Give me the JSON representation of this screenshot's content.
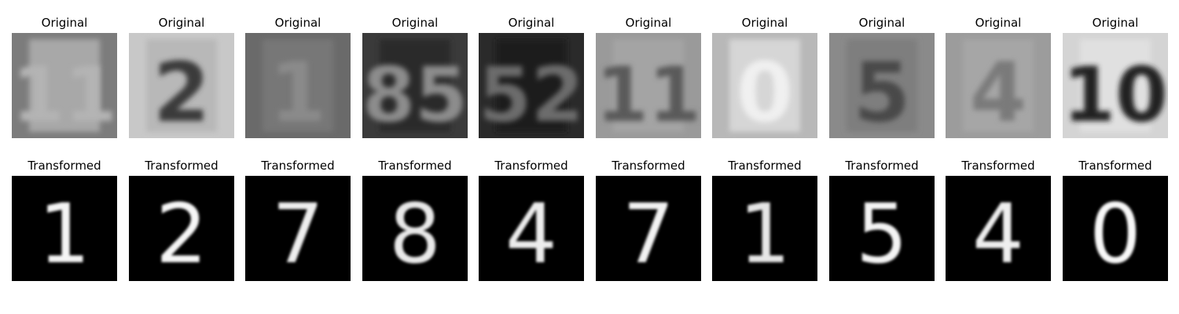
{
  "rows": [
    {
      "label": "Original",
      "images": [
        {
          "digit": "11",
          "bg": "#7c7c7c",
          "fg": "#a8a8a8",
          "digit_color": "#b4b4b4"
        },
        {
          "digit": "2",
          "bg": "#c8c8c8",
          "fg": "#b8b8b8",
          "digit_color": "#3a3a3a"
        },
        {
          "digit": "1",
          "bg": "#6a6a6a",
          "fg": "#777777",
          "digit_color": "#8a8a8a"
        },
        {
          "digit": "85",
          "bg": "#3a3a3a",
          "fg": "#2a2a2a",
          "digit_color": "#8c8c8c"
        },
        {
          "digit": "52",
          "bg": "#2a2a2a",
          "fg": "#1e1e1e",
          "digit_color": "#6c6c6c"
        },
        {
          "digit": "11",
          "bg": "#9a9a9a",
          "fg": "#a4a4a4",
          "digit_color": "#5a5a5a"
        },
        {
          "digit": "0",
          "bg": "#b8b8b8",
          "fg": "#d6d6d6",
          "digit_color": "#f0f0f0"
        },
        {
          "digit": "5",
          "bg": "#8a8a8a",
          "fg": "#7e7e7e",
          "digit_color": "#4a4a4a"
        },
        {
          "digit": "4",
          "bg": "#9c9c9c",
          "fg": "#a6a6a6",
          "digit_color": "#7a7a7a"
        },
        {
          "digit": "10",
          "bg": "#d4d4d4",
          "fg": "#e0e0e0",
          "digit_color": "#222222"
        }
      ]
    },
    {
      "label": "Transformed",
      "images": [
        {
          "digit": "1",
          "bg": "#000000",
          "digit_color": "#f4f4f4"
        },
        {
          "digit": "2",
          "bg": "#000000",
          "digit_color": "#f6f6f6"
        },
        {
          "digit": "7",
          "bg": "#000000",
          "digit_color": "#eeeeee"
        },
        {
          "digit": "8",
          "bg": "#000000",
          "digit_color": "#e8e8e8"
        },
        {
          "digit": "4",
          "bg": "#000000",
          "digit_color": "#ececec"
        },
        {
          "digit": "7",
          "bg": "#000000",
          "digit_color": "#f2f2f2"
        },
        {
          "digit": "1",
          "bg": "#000000",
          "digit_color": "#e6e6e6"
        },
        {
          "digit": "5",
          "bg": "#000000",
          "digit_color": "#f4f4f4"
        },
        {
          "digit": "4",
          "bg": "#000000",
          "digit_color": "#eeeeee"
        },
        {
          "digit": "0",
          "bg": "#000000",
          "digit_color": "#f8f8f8"
        }
      ]
    }
  ]
}
